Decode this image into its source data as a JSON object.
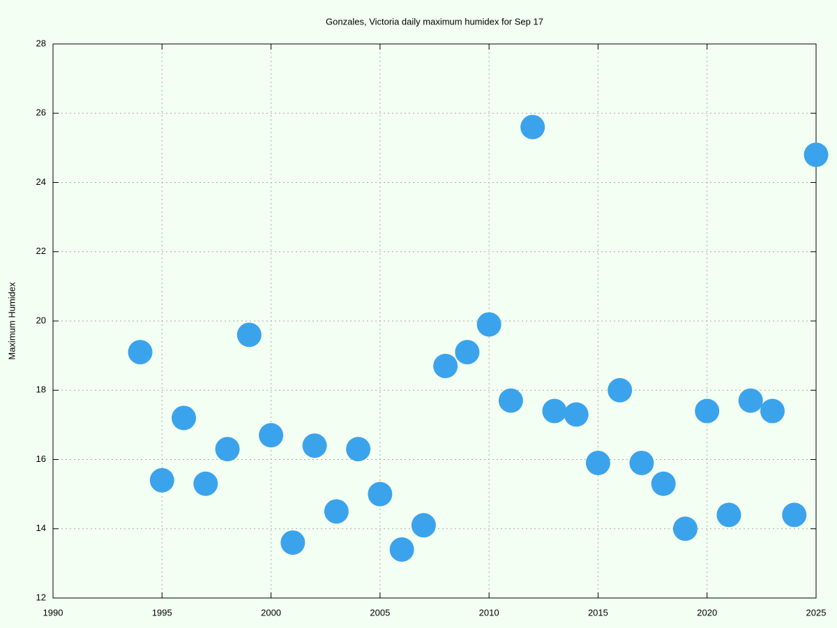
{
  "chart_data": {
    "type": "scatter",
    "title": "Gonzales, Victoria daily maximum humidex for Sep 17",
    "y_label": "Maximum Humidex",
    "series": [
      {
        "color": "#3ba3ec",
        "x": [
          1994,
          1995,
          1996,
          1997,
          1998,
          1999,
          2000,
          2001,
          2002,
          2003,
          2004,
          2005,
          2006,
          2007,
          2008,
          2009,
          2010,
          2011,
          2012,
          2013,
          2014,
          2015,
          2016,
          2017,
          2018,
          2019,
          2020,
          2021,
          2022,
          2023,
          2024,
          2025
        ],
        "values": [
          19.1,
          15.4,
          17.2,
          15.3,
          16.3,
          19.6,
          16.7,
          13.6,
          16.4,
          14.5,
          16.3,
          15.0,
          13.4,
          14.1,
          18.7,
          19.1,
          19.9,
          17.7,
          25.6,
          17.4,
          17.3,
          15.9,
          18.0,
          15.9,
          15.3,
          14.0,
          17.4,
          14.4,
          17.7,
          17.4,
          14.4,
          24.8
        ]
      }
    ],
    "xlim": [
      1990,
      2025
    ],
    "xticks": [
      1990,
      1995,
      2000,
      2005,
      2010,
      2015,
      2020,
      2025
    ],
    "ylim": [
      12,
      28
    ],
    "yticks": [
      12,
      14,
      16,
      18,
      20,
      22,
      24,
      26,
      28
    ],
    "grid": true
  }
}
